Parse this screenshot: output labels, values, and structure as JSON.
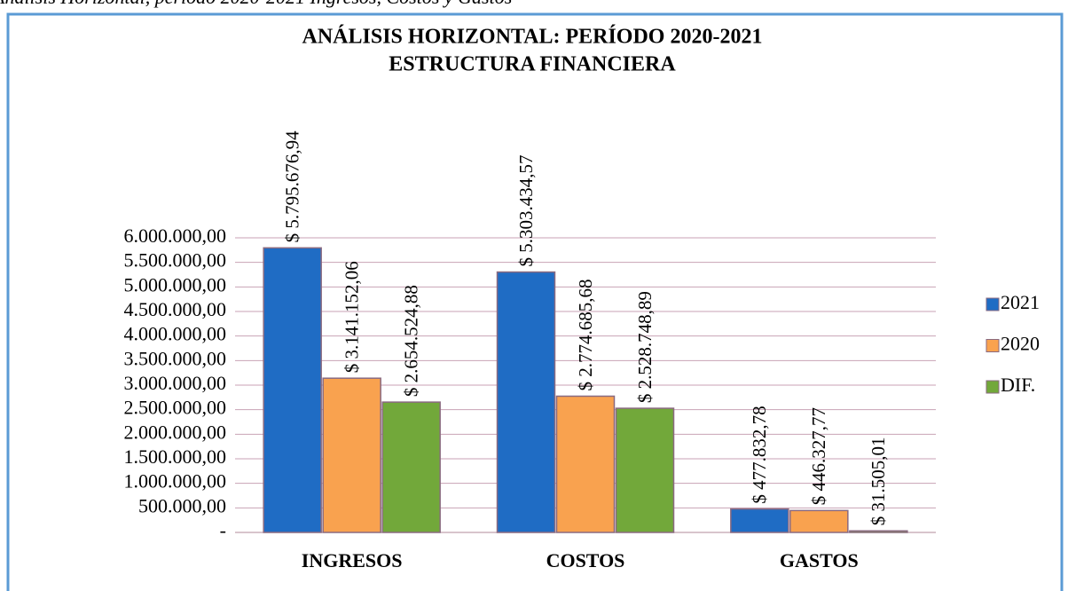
{
  "chart_data": {
    "type": "bar",
    "caption": "Análisis Horizontal, período 2020-2021 Ingresos, Costos y Gastos",
    "title": "ANÁLISIS HORIZONTAL: PERÍODO 2020-2021",
    "subtitle": "ESTRUCTURA FINANCIERA",
    "categories": [
      "INGRESOS",
      "COSTOS",
      "GASTOS"
    ],
    "series": [
      {
        "name": "2021",
        "color": "#1f6cc4",
        "values": [
          5795676.94,
          5303434.57,
          477832.78
        ],
        "value_labels": [
          "$ 5.795.676,94",
          "$ 5.303.434,57",
          "$ 477.832,78"
        ]
      },
      {
        "name": "2020",
        "color": "#f9a24f",
        "values": [
          3141152.06,
          2774685.68,
          446327.77
        ],
        "value_labels": [
          "$ 3.141.152,06",
          "$ 2.774.685,68",
          "$ 446.327,77"
        ]
      },
      {
        "name": "DIF.",
        "color": "#72a83a",
        "values": [
          2654524.88,
          2528748.89,
          31505.01
        ],
        "value_labels": [
          "$ 2.654.524,88",
          "$ 2.528.748,89",
          "$ 31.505,01"
        ]
      }
    ],
    "ylim": [
      0,
      6000000
    ],
    "yticks": [
      {
        "value": 0,
        "label": "-"
      },
      {
        "value": 500000,
        "label": "500.000,00"
      },
      {
        "value": 1000000,
        "label": "1.000.000,00"
      },
      {
        "value": 1500000,
        "label": "1.500.000,00"
      },
      {
        "value": 2000000,
        "label": "2.000.000,00"
      },
      {
        "value": 2500000,
        "label": "2.500.000,00"
      },
      {
        "value": 3000000,
        "label": "3.000.000,00"
      },
      {
        "value": 3500000,
        "label": "3.500.000,00"
      },
      {
        "value": 4000000,
        "label": "4.000.000,00"
      },
      {
        "value": 4500000,
        "label": "4.500.000,00"
      },
      {
        "value": 5000000,
        "label": "5.000.000,00"
      },
      {
        "value": 5500000,
        "label": "5.500.000,00"
      },
      {
        "value": 6000000,
        "label": "6.000.000,00"
      }
    ],
    "grid": true,
    "legend": "right"
  }
}
